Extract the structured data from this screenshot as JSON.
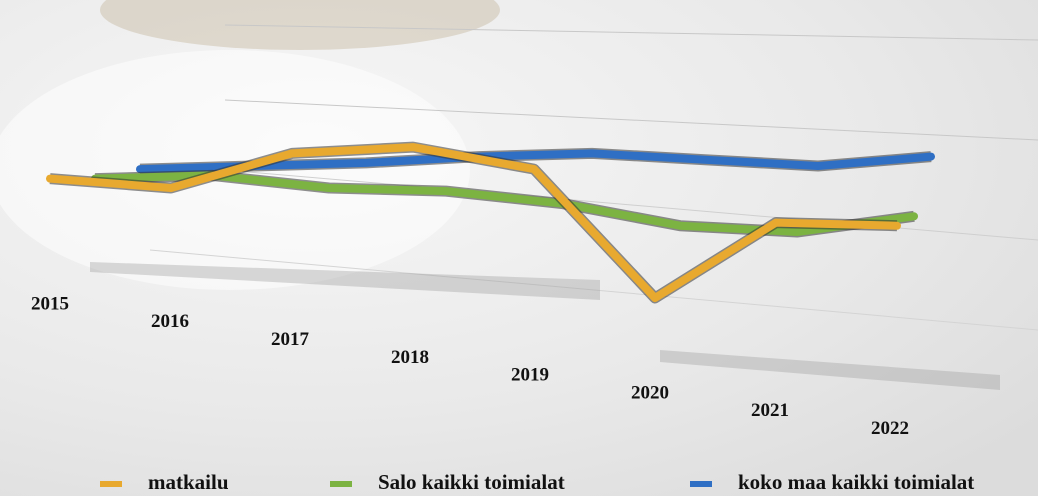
{
  "chart_data": {
    "type": "line",
    "categories": [
      "2015",
      "2016",
      "2017",
      "2018",
      "2019",
      "2020",
      "2021",
      "2022"
    ],
    "series": [
      {
        "name": "matkailu",
        "color": "#e8a92f",
        "values": [
          100,
          97,
          108,
          110,
          103,
          62,
          86,
          85
        ]
      },
      {
        "name": "Salo kaikki toimialat",
        "color": "#7cb342",
        "values": [
          100,
          101,
          97,
          96,
          92,
          85,
          83,
          88
        ]
      },
      {
        "name": "koko maa kaikki toimialat",
        "color": "#2f6fc4",
        "values": [
          103,
          104,
          105,
          107,
          108,
          106,
          104,
          107
        ]
      }
    ],
    "ylim": [
      55,
      125
    ]
  }
}
